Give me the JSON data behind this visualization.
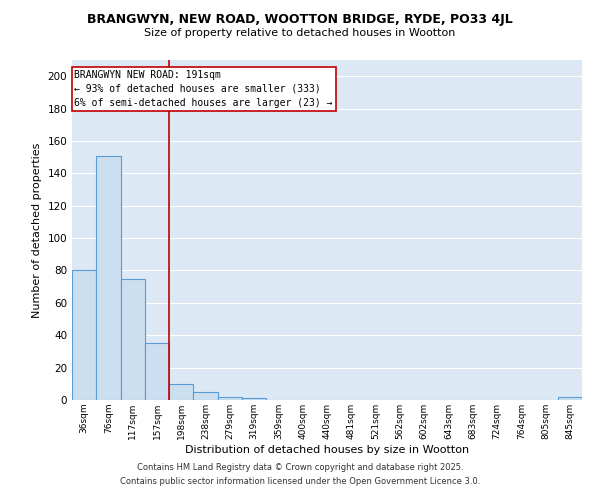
{
  "title_line1": "BRANGWYN, NEW ROAD, WOOTTON BRIDGE, RYDE, PO33 4JL",
  "title_line2": "Size of property relative to detached houses in Wootton",
  "xlabel": "Distribution of detached houses by size in Wootton",
  "ylabel": "Number of detached properties",
  "categories": [
    "36sqm",
    "76sqm",
    "117sqm",
    "157sqm",
    "198sqm",
    "238sqm",
    "279sqm",
    "319sqm",
    "359sqm",
    "400sqm",
    "440sqm",
    "481sqm",
    "521sqm",
    "562sqm",
    "602sqm",
    "643sqm",
    "683sqm",
    "724sqm",
    "764sqm",
    "805sqm",
    "845sqm"
  ],
  "values": [
    80,
    151,
    75,
    35,
    10,
    5,
    2,
    1,
    0,
    0,
    0,
    0,
    0,
    0,
    0,
    0,
    0,
    0,
    0,
    0,
    2
  ],
  "bar_color": "#ccdff0",
  "bar_edge_color": "#5b9bd5",
  "vline_index": 4,
  "vline_color": "#c00000",
  "annotation_text": "BRANGWYN NEW ROAD: 191sqm\n← 93% of detached houses are smaller (333)\n6% of semi-detached houses are larger (23) →",
  "ylim": [
    0,
    210
  ],
  "yticks": [
    0,
    20,
    40,
    60,
    80,
    100,
    120,
    140,
    160,
    180,
    200
  ],
  "footnote1": "Contains HM Land Registry data © Crown copyright and database right 2025.",
  "footnote2": "Contains public sector information licensed under the Open Government Licence 3.0.",
  "background_color": "#dce9f5",
  "grid_color": "#ffffff",
  "fig_bg_color": "#ffffff"
}
